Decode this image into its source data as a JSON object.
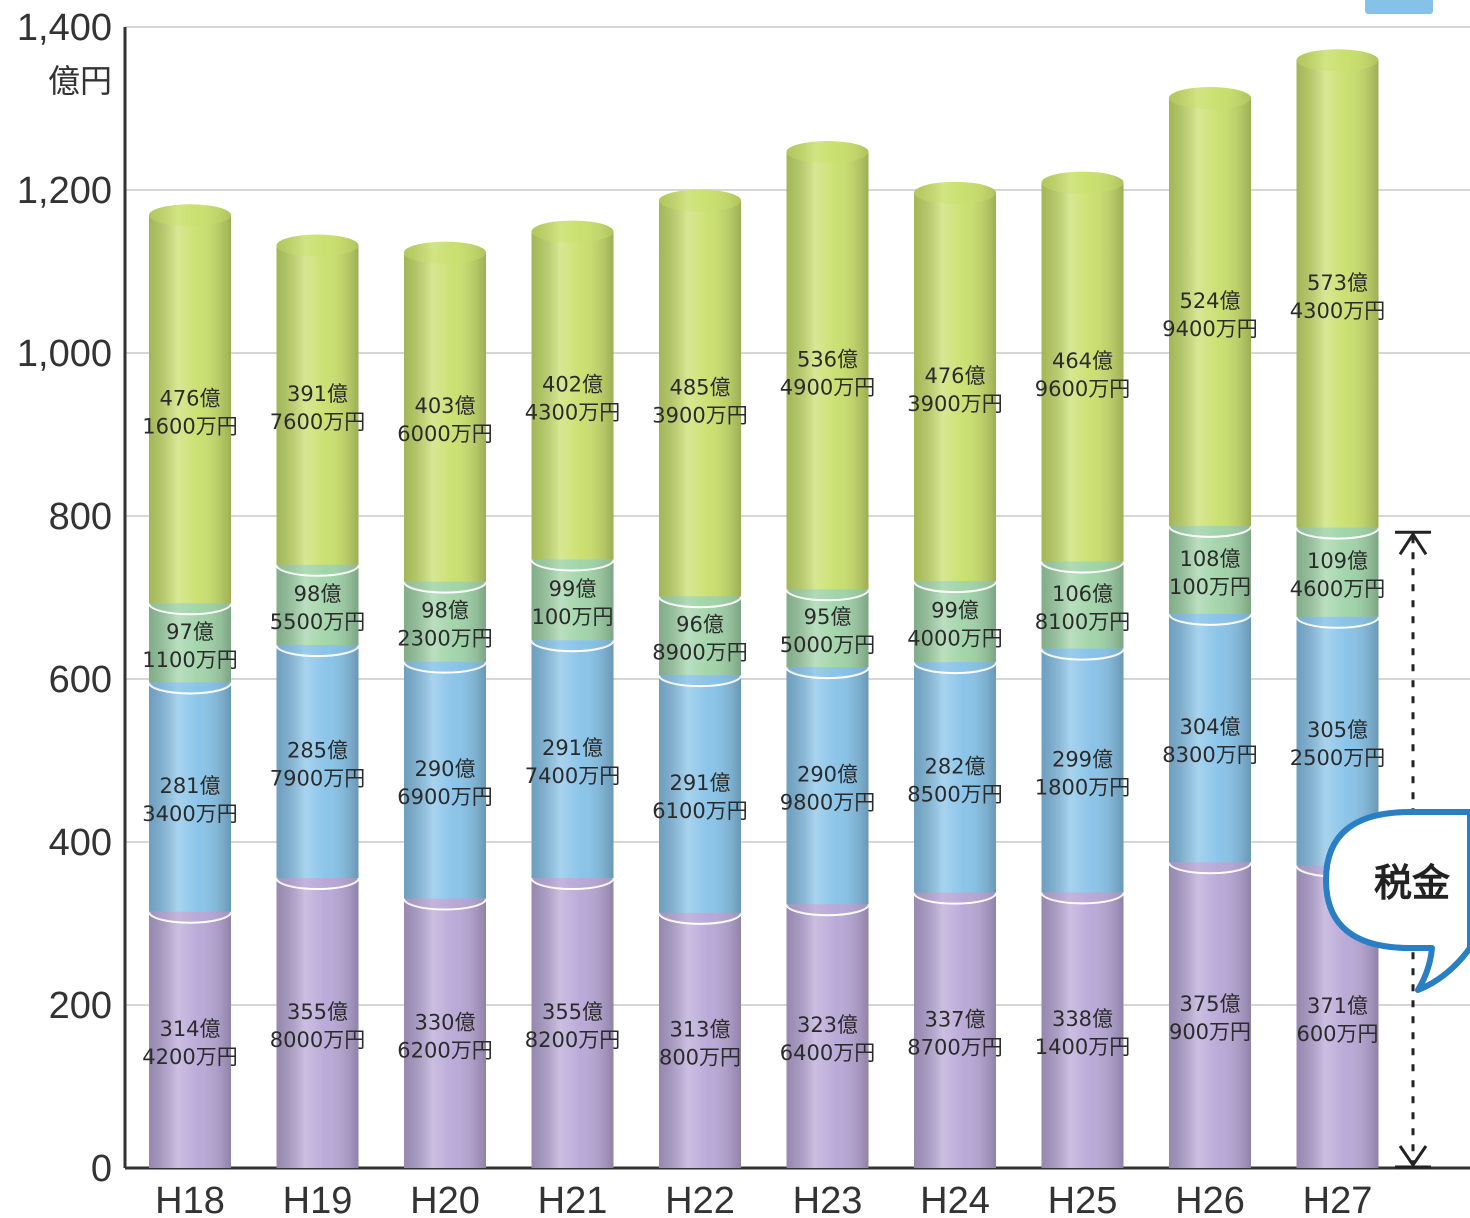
{
  "chart_data": {
    "type": "bar",
    "stacked": true,
    "y_unit_label": "億円",
    "ylim": [
      0,
      1400
    ],
    "yticks": [
      "0",
      "200",
      "400",
      "600",
      "800",
      "1,000",
      "1,200",
      "1,400"
    ],
    "ytick_values": [
      0,
      200,
      400,
      600,
      800,
      1000,
      1200,
      1400
    ],
    "grid": true,
    "categories": [
      "H18",
      "H19",
      "H20",
      "H21",
      "H22",
      "H23",
      "H24",
      "H25",
      "H26",
      "H27"
    ],
    "series": [
      {
        "color": "#b7a6d6",
        "values": [
          314.42,
          355.8,
          330.62,
          355.82,
          313.08,
          323.64,
          337.87,
          338.14,
          375.09,
          371.06
        ],
        "labels": [
          [
            "314億",
            "4200万円"
          ],
          [
            "355億",
            "8000万円"
          ],
          [
            "330億",
            "6200万円"
          ],
          [
            "355億",
            "8200万円"
          ],
          [
            "313億",
            "800万円"
          ],
          [
            "323億",
            "6400万円"
          ],
          [
            "337億",
            "8700万円"
          ],
          [
            "338億",
            "1400万円"
          ],
          [
            "375億",
            "900万円"
          ],
          [
            "371億",
            "600万円"
          ]
        ]
      },
      {
        "color": "#86c2e8",
        "values": [
          281.34,
          285.79,
          290.69,
          291.74,
          291.61,
          290.98,
          282.85,
          299.18,
          304.83,
          305.25
        ],
        "labels": [
          [
            "281億",
            "3400万円"
          ],
          [
            "285億",
            "7900万円"
          ],
          [
            "290億",
            "6900万円"
          ],
          [
            "291億",
            "7400万円"
          ],
          [
            "291億",
            "6100万円"
          ],
          [
            "290億",
            "9800万円"
          ],
          [
            "282億",
            "8500万円"
          ],
          [
            "299億",
            "1800万円"
          ],
          [
            "304億",
            "8300万円"
          ],
          [
            "305億",
            "2500万円"
          ]
        ]
      },
      {
        "color": "#9fd3a7",
        "values": [
          97.11,
          98.55,
          98.23,
          99.01,
          96.89,
          95.5,
          99.4,
          106.81,
          108.01,
          109.46
        ],
        "labels": [
          [
            "97億",
            "1100万円"
          ],
          [
            "98億",
            "5500万円"
          ],
          [
            "98億",
            "2300万円"
          ],
          [
            "99億",
            "100万円"
          ],
          [
            "96億",
            "8900万円"
          ],
          [
            "95億",
            "5000万円"
          ],
          [
            "99億",
            "4000万円"
          ],
          [
            "106億",
            "8100万円"
          ],
          [
            "108億",
            "100万円"
          ],
          [
            "109億",
            "4600万円"
          ]
        ]
      },
      {
        "color": "#c8df6a",
        "values": [
          476.16,
          391.76,
          403.6,
          402.43,
          485.39,
          536.49,
          476.39,
          464.96,
          524.94,
          573.43
        ],
        "labels": [
          [
            "476億",
            "1600万円"
          ],
          [
            "391億",
            "7600万円"
          ],
          [
            "403億",
            "6000万円"
          ],
          [
            "402億",
            "4300万円"
          ],
          [
            "485億",
            "3900万円"
          ],
          [
            "536億",
            "4900万円"
          ],
          [
            "476億",
            "3900万円"
          ],
          [
            "464億",
            "9600万円"
          ],
          [
            "524億",
            "9400万円"
          ],
          [
            "573億",
            "4300万円"
          ]
        ]
      }
    ],
    "annotation": {
      "text": "税金",
      "range": [
        0,
        780
      ]
    }
  }
}
